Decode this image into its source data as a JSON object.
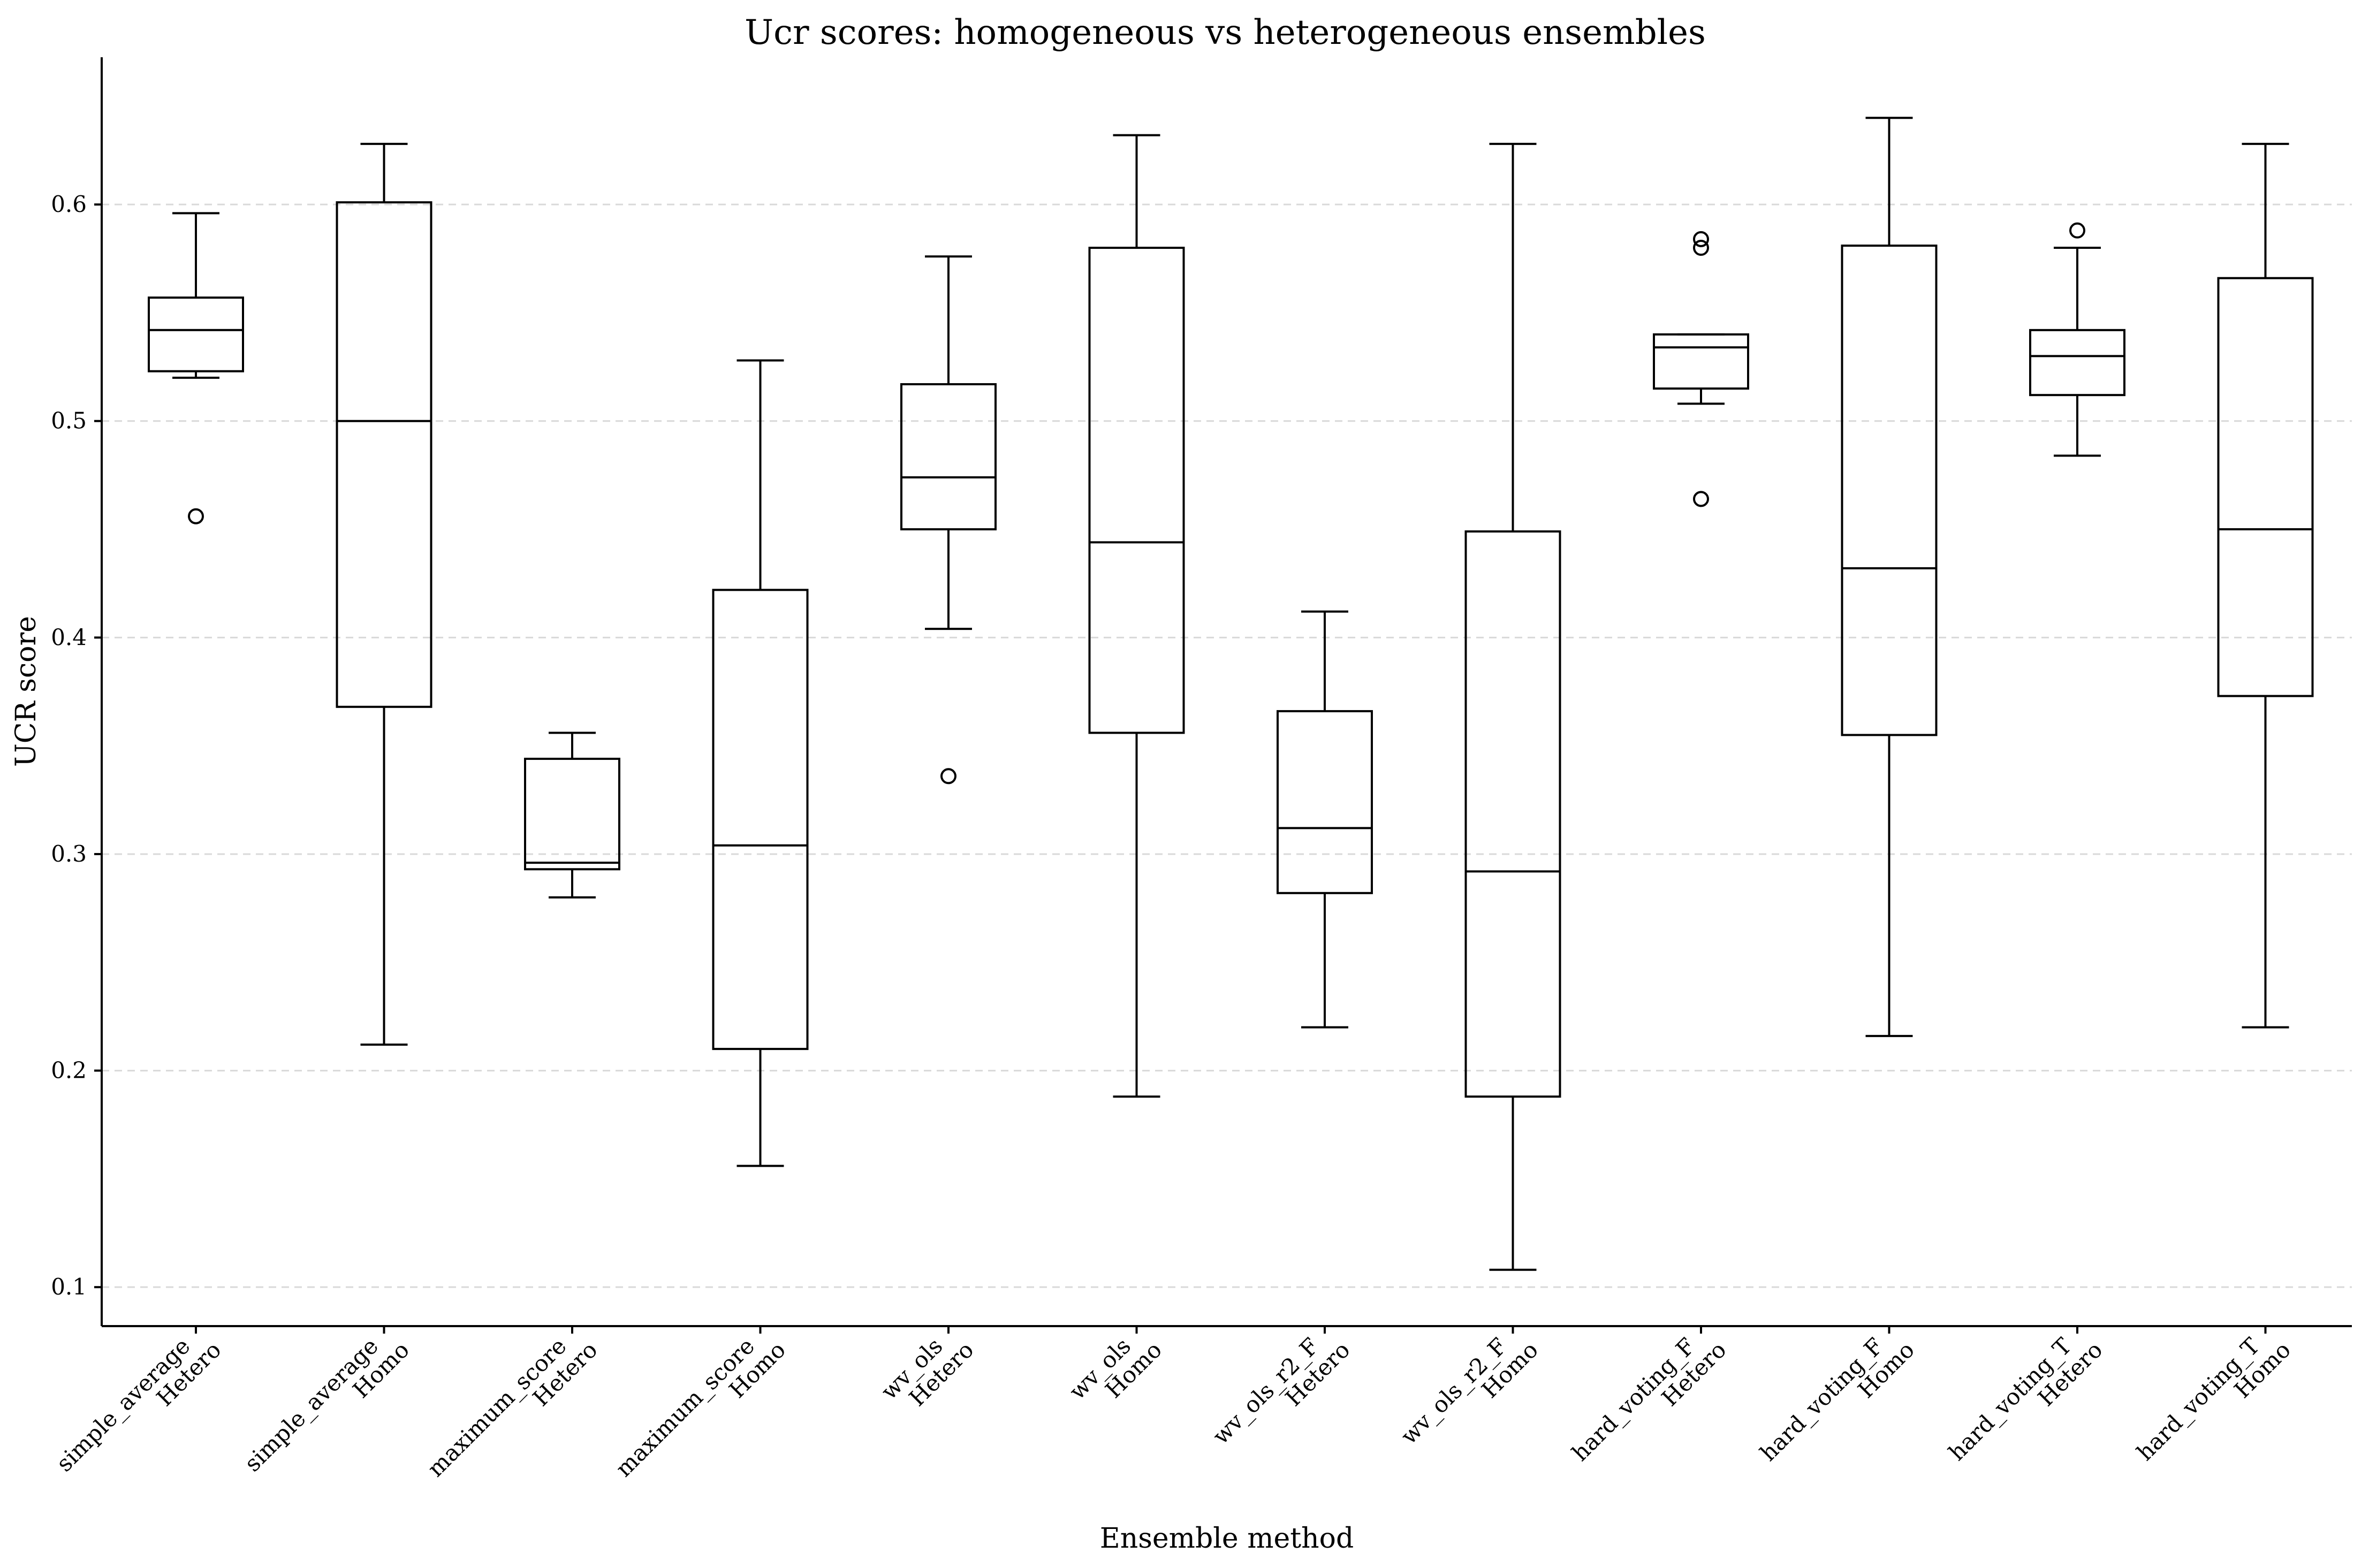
{
  "chart_data": {
    "type": "box",
    "title": "Ucr scores: homogeneous vs heterogeneous ensembles",
    "xlabel": "Ensemble method",
    "ylabel": "UCR score",
    "ylim": [
      0.082,
      0.668
    ],
    "yticks": [
      0.1,
      0.2,
      0.3,
      0.4,
      0.5,
      0.6
    ],
    "grid": "horizontal dashed",
    "categories": [
      {
        "line1": "simple_average",
        "line2": "Hetero",
        "whisker_low": 0.52,
        "q1": 0.523,
        "median": 0.542,
        "q3": 0.557,
        "whisker_high": 0.596,
        "fliers": [
          0.456
        ]
      },
      {
        "line1": "simple_average",
        "line2": "Homo",
        "whisker_low": 0.212,
        "q1": 0.368,
        "median": 0.5,
        "q3": 0.601,
        "whisker_high": 0.628,
        "fliers": []
      },
      {
        "line1": "maximum_score",
        "line2": "Hetero",
        "whisker_low": 0.28,
        "q1": 0.293,
        "median": 0.296,
        "q3": 0.344,
        "whisker_high": 0.356,
        "fliers": []
      },
      {
        "line1": "maximum_score",
        "line2": "Homo",
        "whisker_low": 0.156,
        "q1": 0.21,
        "median": 0.304,
        "q3": 0.422,
        "whisker_high": 0.528,
        "fliers": []
      },
      {
        "line1": "wv_ols",
        "line2": "Hetero",
        "whisker_low": 0.404,
        "q1": 0.45,
        "median": 0.474,
        "q3": 0.517,
        "whisker_high": 0.576,
        "fliers": [
          0.336
        ]
      },
      {
        "line1": "wv_ols",
        "line2": "Homo",
        "whisker_low": 0.188,
        "q1": 0.356,
        "median": 0.444,
        "q3": 0.58,
        "whisker_high": 0.632,
        "fliers": []
      },
      {
        "line1": "wv_ols_r2_F",
        "line2": "Hetero",
        "whisker_low": 0.22,
        "q1": 0.282,
        "median": 0.312,
        "q3": 0.366,
        "whisker_high": 0.412,
        "fliers": []
      },
      {
        "line1": "wv_ols_r2_F",
        "line2": "Homo",
        "whisker_low": 0.108,
        "q1": 0.188,
        "median": 0.292,
        "q3": 0.449,
        "whisker_high": 0.628,
        "fliers": []
      },
      {
        "line1": "hard_voting_F",
        "line2": "Hetero",
        "whisker_low": 0.508,
        "q1": 0.515,
        "median": 0.534,
        "q3": 0.54,
        "whisker_high": 0.54,
        "fliers": [
          0.464,
          0.58,
          0.584
        ]
      },
      {
        "line1": "hard_voting_F",
        "line2": "Homo",
        "whisker_low": 0.216,
        "q1": 0.355,
        "median": 0.432,
        "q3": 0.581,
        "whisker_high": 0.64,
        "fliers": []
      },
      {
        "line1": "hard_voting_T",
        "line2": "Hetero",
        "whisker_low": 0.484,
        "q1": 0.512,
        "median": 0.53,
        "q3": 0.542,
        "whisker_high": 0.58,
        "fliers": [
          0.588
        ]
      },
      {
        "line1": "hard_voting_T",
        "line2": "Homo",
        "whisker_low": 0.22,
        "q1": 0.373,
        "median": 0.45,
        "q3": 0.566,
        "whisker_high": 0.628,
        "fliers": []
      }
    ]
  }
}
